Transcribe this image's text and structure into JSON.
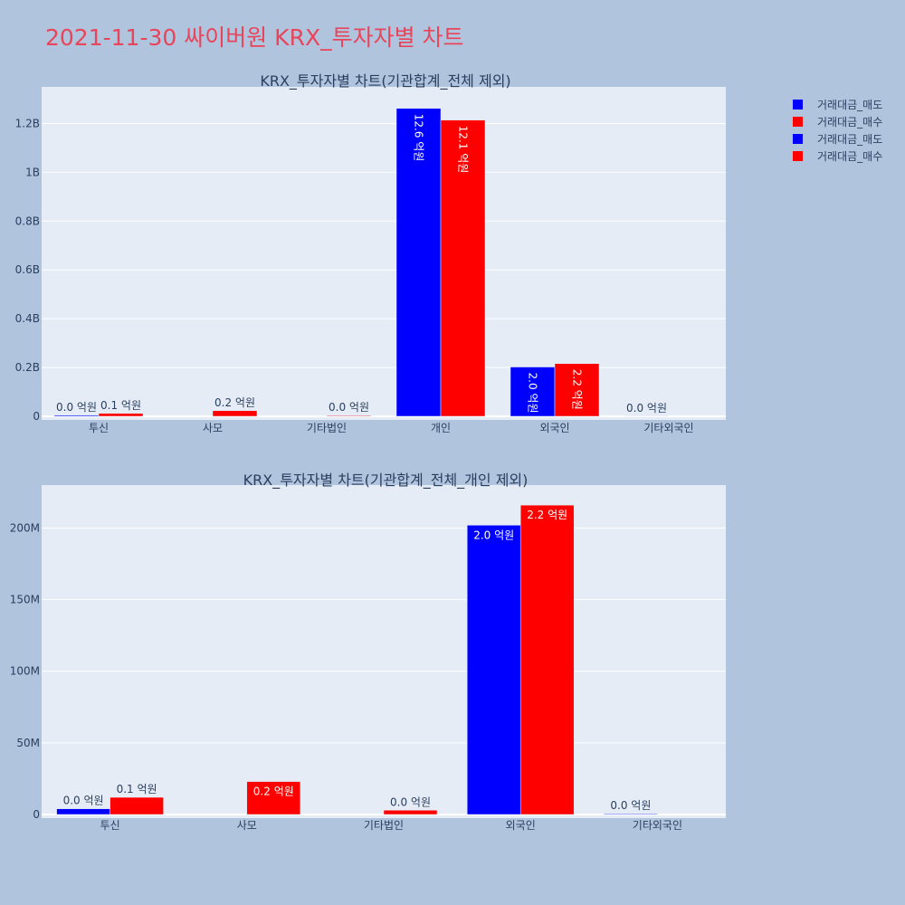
{
  "page_title": "2021-11-30 싸이버원 KRX_투자자별 차트",
  "legend": [
    {
      "label": "거래대금_매도",
      "color": "#0000ff"
    },
    {
      "label": "거래대금_매수",
      "color": "#ff0000"
    },
    {
      "label": "거래대금_매도",
      "color": "#0000ff"
    },
    {
      "label": "거래대금_매수",
      "color": "#ff0000"
    }
  ],
  "chart_data": [
    {
      "type": "bar",
      "title": "KRX_투자자별 차트(기관합계_전체 제외)",
      "categories": [
        "투신",
        "사모",
        "기타법인",
        "개인",
        "외국인",
        "기타외국인"
      ],
      "ylim": [
        0,
        1350000000
      ],
      "yticks": [
        0,
        200000000,
        400000000,
        600000000,
        800000000,
        1000000000,
        1200000000
      ],
      "ytick_labels": [
        "0",
        "0.2B",
        "0.4B",
        "0.6B",
        "0.8B",
        "1B",
        "1.2B"
      ],
      "series": [
        {
          "name": "거래대금_매도",
          "color": "#0000ff",
          "values": [
            4000000,
            0,
            0,
            1262000000,
            202000000,
            500000
          ],
          "labels": [
            "0.0 억원",
            "",
            "",
            "12.6 억원",
            "2.0 억원",
            "0.0 억원"
          ]
        },
        {
          "name": "거래대금_매수",
          "color": "#ff0000",
          "values": [
            12000000,
            23000000,
            3000000,
            1214000000,
            216000000,
            0
          ],
          "labels": [
            "0.1 억원",
            "0.2 억원",
            "0.0 억원",
            "12.1 억원",
            "2.2 억원",
            ""
          ]
        }
      ]
    },
    {
      "type": "bar",
      "title": "KRX_투자자별 차트(기관합계_전체_개인 제외)",
      "categories": [
        "투신",
        "사모",
        "기타법인",
        "외국인",
        "기타외국인"
      ],
      "ylim": [
        0,
        230000000
      ],
      "yticks": [
        0,
        50000000,
        100000000,
        150000000,
        200000000
      ],
      "ytick_labels": [
        "0",
        "50M",
        "100M",
        "150M",
        "200M"
      ],
      "series": [
        {
          "name": "거래대금_매도",
          "color": "#0000ff",
          "values": [
            4000000,
            0,
            0,
            202000000,
            500000
          ],
          "labels": [
            "0.0 억원",
            "",
            "",
            "2.0 억원",
            "0.0 억원"
          ]
        },
        {
          "name": "거래대금_매수",
          "color": "#ff0000",
          "values": [
            12000000,
            23000000,
            3000000,
            216000000,
            0
          ],
          "labels": [
            "0.1 억원",
            "0.2 억원",
            "0.0 억원",
            "2.2 억원",
            ""
          ]
        }
      ]
    }
  ]
}
